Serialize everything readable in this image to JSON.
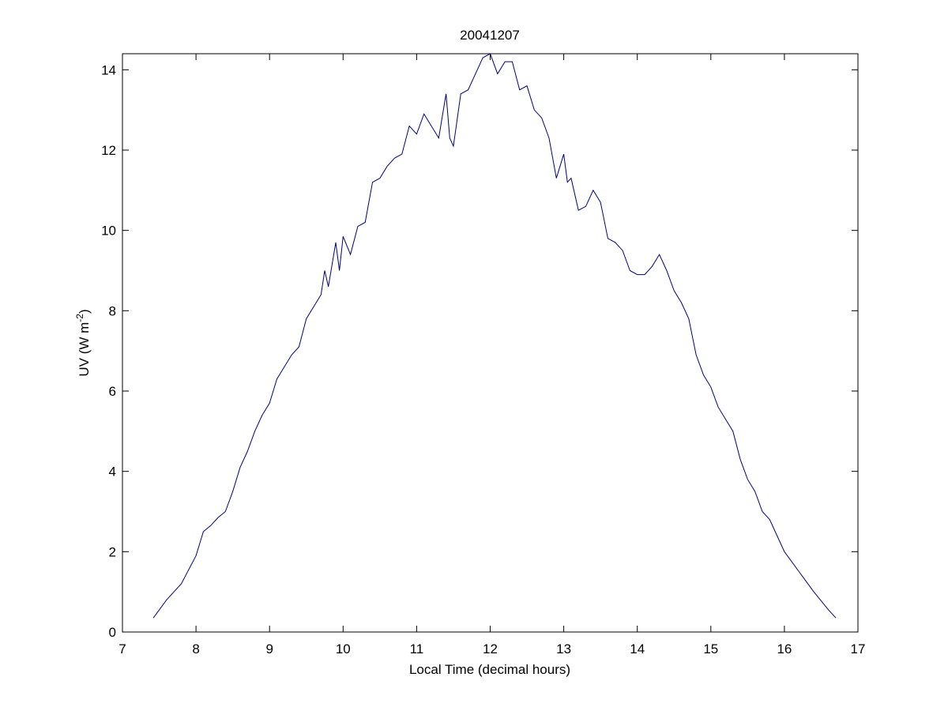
{
  "chart_data": {
    "type": "line",
    "title": "20041207",
    "x_label": "Local Time (decimal hours)",
    "y_label": {
      "text": "UV (W m",
      "superscript": "-2",
      "suffix": ")"
    },
    "xlim": [
      7,
      17
    ],
    "xticks": [
      7,
      8,
      9,
      10,
      11,
      12,
      13,
      14,
      15,
      16,
      17
    ],
    "ylim": [
      0,
      14.4
    ],
    "yticks": [
      0,
      2,
      4,
      6,
      8,
      10,
      12,
      14
    ],
    "grid": false,
    "series": [
      {
        "color": "#00007f",
        "x": [
          7.42,
          7.6,
          7.8,
          8.0,
          8.1,
          8.2,
          8.3,
          8.4,
          8.5,
          8.6,
          8.7,
          8.8,
          8.9,
          9.0,
          9.1,
          9.2,
          9.3,
          9.4,
          9.5,
          9.6,
          9.7,
          9.75,
          9.8,
          9.9,
          9.95,
          10.0,
          10.1,
          10.2,
          10.3,
          10.4,
          10.5,
          10.6,
          10.7,
          10.8,
          10.9,
          11.0,
          11.1,
          11.2,
          11.3,
          11.4,
          11.45,
          11.5,
          11.6,
          11.7,
          11.8,
          11.9,
          12.0,
          12.1,
          12.2,
          12.3,
          12.4,
          12.5,
          12.6,
          12.7,
          12.8,
          12.9,
          13.0,
          13.05,
          13.1,
          13.2,
          13.3,
          13.4,
          13.5,
          13.6,
          13.7,
          13.8,
          13.9,
          14.0,
          14.1,
          14.2,
          14.3,
          14.4,
          14.5,
          14.6,
          14.7,
          14.8,
          14.9,
          15.0,
          15.1,
          15.2,
          15.3,
          15.4,
          15.5,
          15.6,
          15.7,
          15.8,
          15.9,
          16.0,
          16.2,
          16.4,
          16.6,
          16.7
        ],
        "values": [
          0.35,
          0.8,
          1.2,
          1.9,
          2.5,
          2.65,
          2.85,
          3.0,
          3.5,
          4.1,
          4.5,
          5.0,
          5.4,
          5.7,
          6.3,
          6.6,
          6.9,
          7.1,
          7.8,
          8.1,
          8.4,
          9.0,
          8.6,
          9.7,
          9.0,
          9.85,
          9.4,
          10.1,
          10.2,
          11.2,
          11.3,
          11.6,
          11.8,
          11.9,
          12.6,
          12.4,
          12.9,
          12.6,
          12.3,
          13.4,
          12.3,
          12.1,
          13.4,
          13.5,
          13.9,
          14.3,
          14.4,
          13.9,
          14.2,
          14.2,
          13.5,
          13.6,
          13.0,
          12.8,
          12.3,
          11.3,
          11.9,
          11.2,
          11.3,
          10.5,
          10.6,
          11.0,
          10.7,
          9.8,
          9.7,
          9.5,
          9.0,
          8.9,
          8.9,
          9.1,
          9.4,
          9.0,
          8.5,
          8.2,
          7.8,
          6.9,
          6.4,
          6.1,
          5.6,
          5.3,
          5.0,
          4.3,
          3.8,
          3.5,
          3.0,
          2.8,
          2.4,
          2.0,
          1.5,
          1.0,
          0.55,
          0.35
        ]
      }
    ]
  }
}
